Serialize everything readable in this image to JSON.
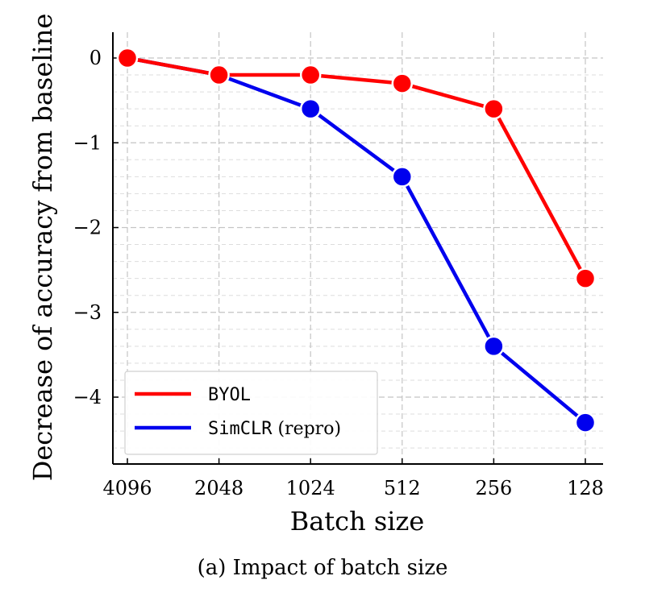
{
  "chart_data": {
    "type": "line",
    "categories": [
      "4096",
      "2048",
      "1024",
      "512",
      "256",
      "128"
    ],
    "xlabel": "Batch size",
    "ylabel": "Decrease of accuracy from baseline",
    "ylim": [
      -4.8,
      0.3
    ],
    "yticks": [
      0,
      -1,
      -2,
      -3,
      -4
    ],
    "ytick_labels": [
      "0",
      "−1",
      "−2",
      "−3",
      "−4"
    ],
    "grid": true,
    "legend_position": "bottom-left",
    "series": [
      {
        "name": "BYOL",
        "name_mono": "BYOL",
        "name_rest": "",
        "color": "#ff0000",
        "values": [
          0,
          -0.2,
          -0.2,
          -0.3,
          -0.6,
          -2.6
        ]
      },
      {
        "name": "SimCLR (repro)",
        "name_mono": "SimCLR",
        "name_rest": " (repro)",
        "color": "#0000ee",
        "values": [
          0,
          -0.2,
          -0.6,
          -1.4,
          -3.4,
          -4.3
        ]
      }
    ]
  },
  "caption": "(a) Impact of batch size"
}
